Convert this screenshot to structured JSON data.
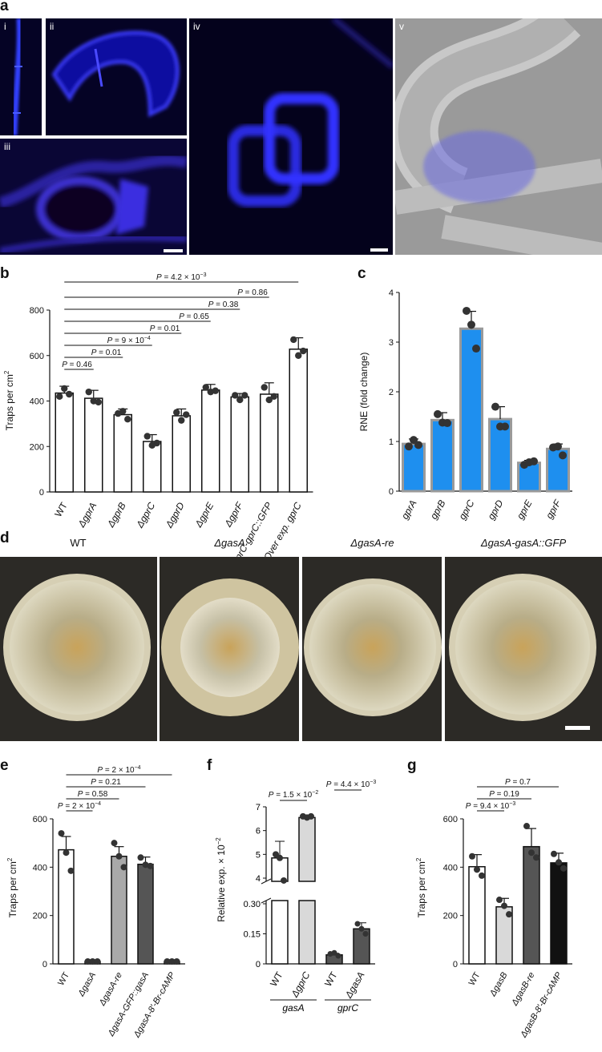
{
  "panels": {
    "a": {
      "letter": "a",
      "subpanels": [
        "i",
        "ii",
        "iii",
        "iv",
        "v"
      ]
    },
    "b": {
      "letter": "b",
      "ylabel": "Traps per cm",
      "ylabel_sup": "2",
      "chart_data": {
        "type": "bar",
        "categories": [
          "WT",
          "ΔgprA",
          "ΔgprB",
          "ΔgprC",
          "ΔgprD",
          "ΔgprE",
          "ΔgprF",
          "ΔgprC-gprC::GFP",
          "Over exp. gprC"
        ],
        "values": [
          435,
          412,
          340,
          222,
          335,
          448,
          418,
          430,
          628
        ],
        "errors": [
          30,
          35,
          25,
          30,
          30,
          25,
          15,
          50,
          50
        ],
        "points": [
          [
            420,
            455,
            430
          ],
          [
            440,
            400,
            395
          ],
          [
            345,
            355,
            320
          ],
          [
            245,
            205,
            215
          ],
          [
            350,
            315,
            340
          ],
          [
            460,
            440,
            445
          ],
          [
            425,
            405,
            425
          ],
          [
            460,
            405,
            420
          ],
          [
            670,
            600,
            620
          ]
        ],
        "ylim": [
          0,
          800
        ],
        "yticks": [
          0,
          200,
          400,
          600,
          800
        ],
        "pvalues": [
          "P = 0.46",
          "P = 0.01",
          "P = 9 × 10−4",
          "P = 0.01",
          "P = 0.65",
          "P = 0.38",
          "P = 0.86",
          "P = 4.2 × 10−3"
        ]
      }
    },
    "c": {
      "letter": "c",
      "ylabel": "RNE (fold change)",
      "chart_data": {
        "type": "bar",
        "categories": [
          "gprA",
          "gprB",
          "gprC",
          "gprD",
          "gprE",
          "gprF"
        ],
        "values": [
          0.95,
          1.43,
          3.27,
          1.45,
          0.57,
          0.85
        ],
        "errors": [
          0.1,
          0.15,
          0.35,
          0.25,
          0.05,
          0.1
        ],
        "points": [
          [
            0.9,
            1.03,
            0.93
          ],
          [
            1.55,
            1.38,
            1.37
          ],
          [
            3.63,
            3.35,
            2.87
          ],
          [
            1.7,
            1.3,
            1.3
          ],
          [
            0.53,
            0.58,
            0.6
          ],
          [
            0.88,
            0.9,
            0.72
          ]
        ],
        "ylim": [
          0,
          4
        ],
        "yticks": [
          0,
          1,
          2,
          3,
          4
        ]
      }
    },
    "d": {
      "letter": "d",
      "plates": [
        "WT",
        "ΔgasA",
        "ΔgasA-re",
        "ΔgasA-gasA::GFP"
      ]
    },
    "e": {
      "letter": "e",
      "ylabel": "Traps per cm",
      "ylabel_sup": "2",
      "chart_data": {
        "type": "bar",
        "categories": [
          "WT",
          "ΔgasA",
          "ΔgasA-re",
          "ΔgasA-GFP::gasA",
          "ΔgasA-8′-Br-cAMP"
        ],
        "values": [
          472,
          10,
          445,
          412,
          10
        ],
        "errors": [
          55,
          3,
          40,
          30,
          3
        ],
        "points": [
          [
            540,
            460,
            385
          ],
          [
            10,
            10,
            10
          ],
          [
            500,
            445,
            400
          ],
          [
            440,
            410,
            405
          ],
          [
            10,
            10,
            10
          ]
        ],
        "ylim": [
          0,
          600
        ],
        "yticks": [
          0,
          200,
          400,
          600
        ],
        "pvalues": [
          "P = 2 × 10−4",
          "P = 0.58",
          "P = 0.21",
          "P = 2 × 10−4"
        ]
      }
    },
    "f": {
      "letter": "f",
      "ylabel": "Relative exp. × 10",
      "ylabel_sup": "−2",
      "groups": [
        "gasA",
        "gprC"
      ],
      "chart_data": {
        "type": "bar",
        "categories": [
          "WT",
          "ΔgprC",
          "WT",
          "ΔgasA"
        ],
        "values": [
          4.85,
          6.55,
          0.045,
          0.175
        ],
        "errors": [
          0.7,
          0.1,
          0.008,
          0.03
        ],
        "points": [
          [
            5.0,
            4.85,
            3.9
          ],
          [
            6.6,
            6.55,
            6.6
          ],
          [
            0.05,
            0.055,
            0.04
          ],
          [
            0.2,
            0.175,
            0.15
          ]
        ],
        "yticks_upper": [
          "4",
          "5",
          "6",
          "7"
        ],
        "yticks_lower": [
          "0",
          "0.15",
          "0.30"
        ],
        "pvalues": [
          "P = 1.5 × 10−2",
          "P = 4.4 × 10−3"
        ]
      }
    },
    "g": {
      "letter": "g",
      "ylabel": "Traps per cm",
      "ylabel_sup": "2",
      "chart_data": {
        "type": "bar",
        "categories": [
          "WT",
          "ΔgasB",
          "ΔgasB-re",
          "ΔgasB-8′-Br-cAMP"
        ],
        "values": [
          402,
          236,
          485,
          418
        ],
        "errors": [
          50,
          35,
          75,
          40
        ],
        "points": [
          [
            445,
            390,
            365
          ],
          [
            265,
            240,
            205
          ],
          [
            570,
            460,
            440
          ],
          [
            455,
            420,
            395
          ]
        ],
        "ylim": [
          0,
          600
        ],
        "yticks": [
          0,
          200,
          400,
          600
        ],
        "pvalues": [
          "P = 9.4 × 10−3",
          "P = 0.19",
          "P = 0.7"
        ]
      }
    }
  },
  "colors": {
    "white_bar": "#ffffff",
    "blue_bar": "#1e8fef",
    "grey_bar": "#a9a9a9",
    "dark_grey_bar": "#555555",
    "light_grey_bar": "#d9d9d9",
    "black_bar": "#111111",
    "dot": "#333333"
  }
}
